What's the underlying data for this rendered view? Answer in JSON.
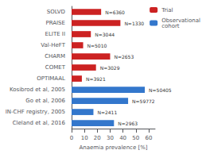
{
  "chart_data": {
    "type": "bar",
    "orientation": "horizontal",
    "categories": [
      "SOLVD",
      "PRAISE",
      "ELITE II",
      "Val-HeFT",
      "CHARM",
      "COMET",
      "OPTIMAAL",
      "Kosibrod et al, 2005",
      "Go et al, 2006",
      "IN-CHF registry, 2005",
      "Cleland et al, 2016"
    ],
    "series": [
      {
        "name": "Trial",
        "color": "#cc2222",
        "values": [
          23,
          38,
          15,
          9,
          30,
          19,
          8,
          null,
          null,
          null,
          null
        ]
      },
      {
        "name": "Observational\ncohort",
        "color": "#3377cc",
        "values": [
          null,
          null,
          null,
          null,
          null,
          null,
          null,
          57,
          44,
          17,
          33
        ]
      }
    ],
    "annotations": [
      "N=6360",
      "N=1330",
      "N=3044",
      "N=5010",
      "N=2653",
      "N=3029",
      "N=3921",
      "N=50405",
      "N=59772",
      "N=2411",
      "N=2963"
    ],
    "xlabel": "Anaemia prevalence [%]",
    "xlim": [
      0,
      65
    ],
    "xticks": [
      0,
      10,
      20,
      30,
      40,
      50,
      60
    ],
    "grid": false,
    "legend": "upper right"
  }
}
